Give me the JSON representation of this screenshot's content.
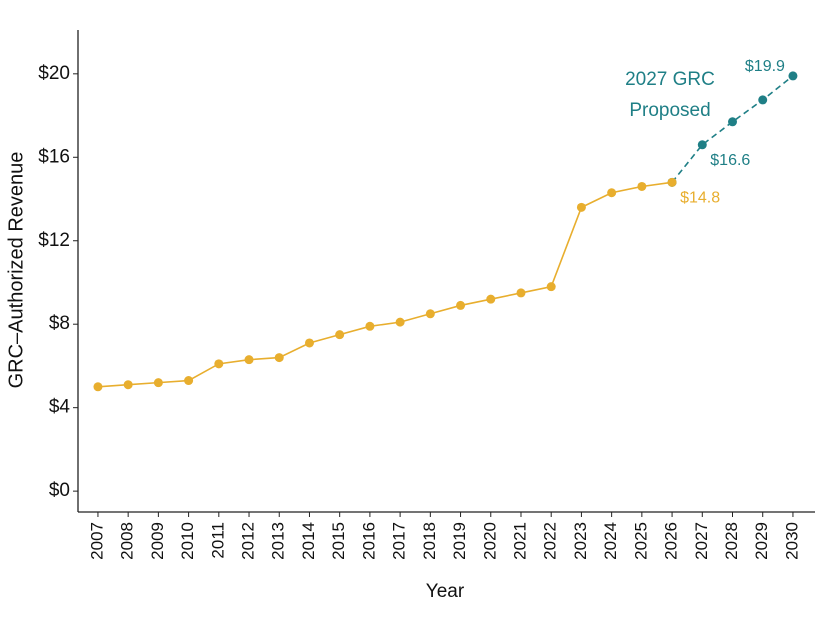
{
  "chart_data": {
    "type": "line",
    "x_label": "Year",
    "y_label": "GRC–Authorized Revenue",
    "annotation": [
      "2027 GRC",
      "Proposed"
    ],
    "xlim": [
      2006.34,
      2030.73
    ],
    "xticks": [
      2007,
      2008,
      2009,
      2010,
      2011,
      2012,
      2013,
      2014,
      2015,
      2016,
      2017,
      2018,
      2019,
      2020,
      2021,
      2022,
      2023,
      2024,
      2025,
      2026,
      2027,
      2028,
      2029,
      2030
    ],
    "ylim": [
      -1.0,
      22.1
    ],
    "yticks": [
      {
        "value": 0,
        "label": "$0"
      },
      {
        "value": 4,
        "label": "$4"
      },
      {
        "value": 8,
        "label": "$8"
      },
      {
        "value": 12,
        "label": "$12"
      },
      {
        "value": 16,
        "label": "$16"
      },
      {
        "value": 20,
        "label": "$20"
      }
    ],
    "series": [
      {
        "name": "Proposed",
        "color": "#1f7f86",
        "dashed": true,
        "x": [
          2026,
          2027,
          2028,
          2029,
          2030
        ],
        "values": [
          14.8,
          16.6,
          17.7,
          18.75,
          19.9
        ],
        "value_labels": [
          null,
          "$16.6",
          null,
          null,
          "$19.9"
        ]
      },
      {
        "name": "Authorized",
        "color": "#e8ae2e",
        "dashed": false,
        "x": [
          2007,
          2008,
          2009,
          2010,
          2011,
          2012,
          2013,
          2014,
          2015,
          2016,
          2017,
          2018,
          2019,
          2020,
          2021,
          2022,
          2023,
          2024,
          2025,
          2026
        ],
        "values": [
          5.0,
          5.1,
          5.2,
          5.3,
          6.1,
          6.3,
          6.4,
          7.1,
          7.5,
          7.9,
          8.1,
          8.5,
          8.9,
          9.2,
          9.5,
          9.8,
          13.6,
          14.3,
          14.6,
          14.8
        ],
        "value_labels": [
          null,
          null,
          null,
          null,
          null,
          null,
          null,
          null,
          null,
          null,
          null,
          null,
          null,
          null,
          null,
          null,
          null,
          null,
          null,
          "$14.8"
        ]
      }
    ]
  }
}
